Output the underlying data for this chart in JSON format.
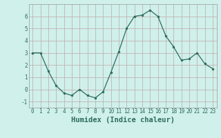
{
  "x": [
    0,
    1,
    2,
    3,
    4,
    5,
    6,
    7,
    8,
    9,
    10,
    11,
    12,
    13,
    14,
    15,
    16,
    17,
    18,
    19,
    20,
    21,
    22,
    23
  ],
  "y": [
    3.0,
    3.0,
    1.5,
    0.3,
    -0.3,
    -0.5,
    0.0,
    -0.5,
    -0.7,
    -0.2,
    1.4,
    3.1,
    5.0,
    6.0,
    6.1,
    6.5,
    6.0,
    4.4,
    3.5,
    2.4,
    2.5,
    3.0,
    2.1,
    1.7
  ],
  "line_color": "#2e6b5e",
  "marker": "o",
  "marker_size": 2,
  "bg_color": "#cff0eb",
  "grid_color": "#c0a8a8",
  "xlabel": "Humidex (Indice chaleur)",
  "xlim": [
    -0.5,
    23.5
  ],
  "ylim": [
    -1.5,
    7.0
  ],
  "yticks": [
    -1,
    0,
    1,
    2,
    3,
    4,
    5,
    6
  ],
  "xticks": [
    0,
    1,
    2,
    3,
    4,
    5,
    6,
    7,
    8,
    9,
    10,
    11,
    12,
    13,
    14,
    15,
    16,
    17,
    18,
    19,
    20,
    21,
    22,
    23
  ],
  "tick_fontsize": 5.5,
  "xlabel_fontsize": 7.5
}
